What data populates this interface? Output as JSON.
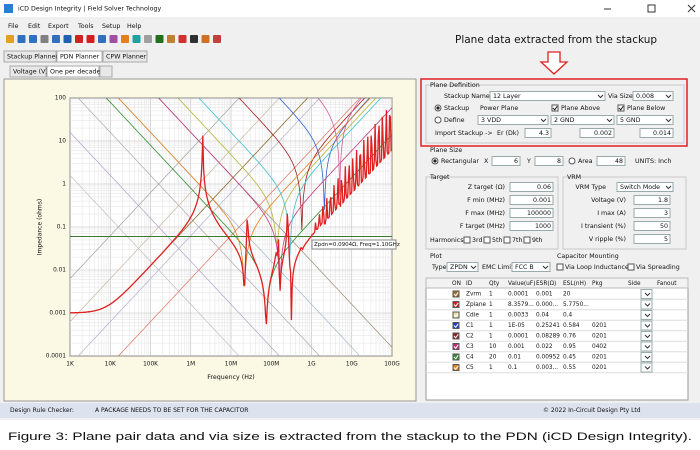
{
  "window": {
    "title": "iCD Design Integrity | Field Solver Technology"
  },
  "menu": [
    "File",
    "Edit",
    "Export",
    "Tools",
    "Setup",
    "Help"
  ],
  "tabs": [
    "Stackup Planner",
    "PDN Planner",
    "CPW Planner"
  ],
  "subtabs": [
    "Voltage (V)",
    "One per decade"
  ],
  "plot_area": {
    "yticks": [
      "100",
      "10",
      "1",
      "0.1",
      "0.01",
      "0.001",
      "0.0001"
    ],
    "xticks": [
      "1K",
      "10K",
      "100K",
      "1M",
      "10M",
      "100M",
      "1G",
      "10G",
      "100G"
    ],
    "xlabel": "Frequency (Hz)",
    "ylabel": "Impedance (ohms)",
    "tooltip": "Zpdn=0.0904Ω, Freq=1.10GHz"
  },
  "annotation": "Plane data extracted from the stackup",
  "plane_definition": {
    "title": "Plane Definition",
    "stackup_name_label": "Stackup Name:",
    "stackup_name": "12 Layer",
    "via_size_label": "Via Size:",
    "via_size": "0.008",
    "stackup_option": "Stackup",
    "define_option": "Define",
    "power_plane_label": "Power Plane",
    "power_plane": "3 VDD",
    "plane_above_label": "Plane Above",
    "plane_above": "2 GND",
    "plane_below_label": "Plane Below",
    "plane_below": "5 GND",
    "import_label": "Import Stackup ->",
    "er_label": "Er (Dk)",
    "er": "4.3",
    "thickness_1": "0.002",
    "thickness_2": "0.014"
  },
  "plane_size": {
    "title": "Plane Size",
    "rectangular": "Rectangular",
    "x_label": "X",
    "x": "6",
    "y_label": "Y",
    "y": "8",
    "area_label": "Area",
    "area": "48",
    "units": "UNITS: Inch"
  },
  "target": {
    "title": "Target",
    "rows": [
      [
        "Z target (Ω)",
        "0.06"
      ],
      [
        "F min (MHz)",
        "0.001"
      ],
      [
        "F max (MHz)",
        "100000"
      ],
      [
        "F target (MHz)",
        "1000"
      ]
    ],
    "harmonics_label": "Harmonics",
    "harmonics": [
      "3rd",
      "5th",
      "7th",
      "9th"
    ]
  },
  "vrm": {
    "title": "VRM",
    "type_label": "VRM Type",
    "type": "Switch Mode",
    "rows": [
      [
        "Voltage (V)",
        "1.8"
      ],
      [
        "I max (A)",
        "3"
      ],
      [
        "I transient (%)",
        "50"
      ],
      [
        "V ripple (%)",
        "5"
      ]
    ]
  },
  "plot": {
    "title": "Plot",
    "type_label": "Type",
    "type": "ZPDN",
    "emc_label": "EMC Limit",
    "emc": "FCC B"
  },
  "capacitor_mounting": {
    "title": "Capacitor Mounting",
    "options": [
      "Via Loop Inductance",
      "Via Spreading"
    ]
  },
  "table": {
    "headers": [
      "ON",
      "ID",
      "Qty",
      "Value(uF)",
      "ESR(Ω)",
      "ESL(nH)",
      "Pkg",
      "Side",
      "Fanout"
    ],
    "rows": [
      {
        "id": "Zvrm",
        "qty": "1",
        "value": "0.0001",
        "esr": "0.001",
        "esl": "20",
        "color": "#a0702a"
      },
      {
        "id": "Zplane",
        "qty": "1",
        "value": "8.3579...",
        "esr": "0.000...",
        "esl": "5.7750...",
        "color": "#d02020"
      },
      {
        "id": "Cdie",
        "qty": "1",
        "value": "0.0033",
        "esr": "0.04",
        "esl": "0.4",
        "color": "#e8e0a0"
      },
      {
        "id": "C1",
        "qty": "1",
        "value": "1E-05",
        "esr": "0.25241",
        "esl": "0.584",
        "pkg": "0201",
        "color": "#2040c0"
      },
      {
        "id": "C2",
        "qty": "1",
        "value": "0.0001",
        "esr": "0.08289",
        "esl": "0.76",
        "pkg": "0201",
        "color": "#902020"
      },
      {
        "id": "C3",
        "qty": "10",
        "value": "0.001",
        "esr": "0.022",
        "esl": "0.95",
        "pkg": "0402",
        "color": "#c03070"
      },
      {
        "id": "C4",
        "qty": "20",
        "value": "0.01",
        "esr": "0.00952",
        "esl": "0.45",
        "pkg": "0201",
        "color": "#309030"
      },
      {
        "id": "C5",
        "qty": "1",
        "value": "0.1",
        "esr": "0.003...",
        "esl": "0.55",
        "pkg": "0201",
        "color": "#e08020"
      }
    ]
  },
  "status": {
    "label": "Design Rule Checker:",
    "message": "A PACKAGE NEEDS TO BE SET FOR THE CAPACITOR",
    "copyright": "© 2022 In-Circuit Design Pty Ltd"
  },
  "caption": "Figure 3: Plane pair data and via size is extracted from the stackup to the PDN (iCD Design Integrity)."
}
